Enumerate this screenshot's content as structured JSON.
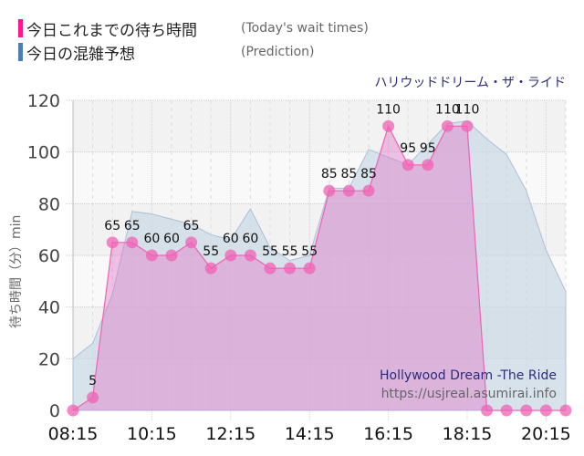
{
  "legend": {
    "today": {
      "jp": "今日これまでの待ち時間",
      "en": "(Today's wait times)",
      "color": "#ff1493"
    },
    "prediction": {
      "jp": "今日の混雑予想",
      "en": "(Prediction)",
      "color": "#4a7fb0"
    }
  },
  "ride": {
    "name_jp": "ハリウッドドリーム・ザ・ライド",
    "name_en": "Hollywood Dream -The Ride",
    "url": "https://usjreal.asumirai.info"
  },
  "chart_data": {
    "type": "area",
    "title": "ハリウッドドリーム・ザ・ライド",
    "xlabel": "",
    "ylabel": "待ち時間（分）min",
    "ylim": [
      0,
      120
    ],
    "yticks": [
      0,
      20,
      40,
      60,
      80,
      100,
      120
    ],
    "xtick_labels": [
      "08:15",
      "10:15",
      "12:15",
      "14:15",
      "16:15",
      "18:15",
      "20:15"
    ],
    "x": [
      "08:15",
      "08:45",
      "09:15",
      "09:45",
      "10:15",
      "10:45",
      "11:15",
      "11:45",
      "12:15",
      "12:45",
      "13:15",
      "13:45",
      "14:15",
      "14:45",
      "15:15",
      "15:45",
      "16:15",
      "16:45",
      "17:15",
      "17:45",
      "18:15",
      "18:45",
      "19:15",
      "19:45",
      "20:15",
      "20:45"
    ],
    "series": [
      {
        "name": "今日これまでの待ち時間 (Today's wait times)",
        "color": "#ff69b4",
        "values": [
          0,
          5,
          65,
          65,
          60,
          60,
          65,
          55,
          60,
          60,
          55,
          55,
          55,
          85,
          85,
          85,
          110,
          95,
          95,
          110,
          110,
          0,
          0,
          0,
          0,
          0
        ],
        "labels_shown": [
          null,
          5,
          65,
          65,
          60,
          60,
          65,
          55,
          60,
          60,
          55,
          55,
          55,
          85,
          85,
          85,
          110,
          95,
          95,
          110,
          110,
          null,
          null,
          null,
          null,
          null
        ]
      },
      {
        "name": "今日の混雑予想 (Prediction)",
        "color": "#a9c1d9",
        "values": [
          20,
          26,
          45,
          77,
          76,
          74,
          72,
          68,
          66,
          78,
          63,
          58,
          60,
          86,
          86,
          101,
          98,
          95,
          103,
          111,
          112,
          105,
          99,
          85,
          62,
          46
        ]
      }
    ],
    "grid": true,
    "legend_position": "top-left"
  }
}
